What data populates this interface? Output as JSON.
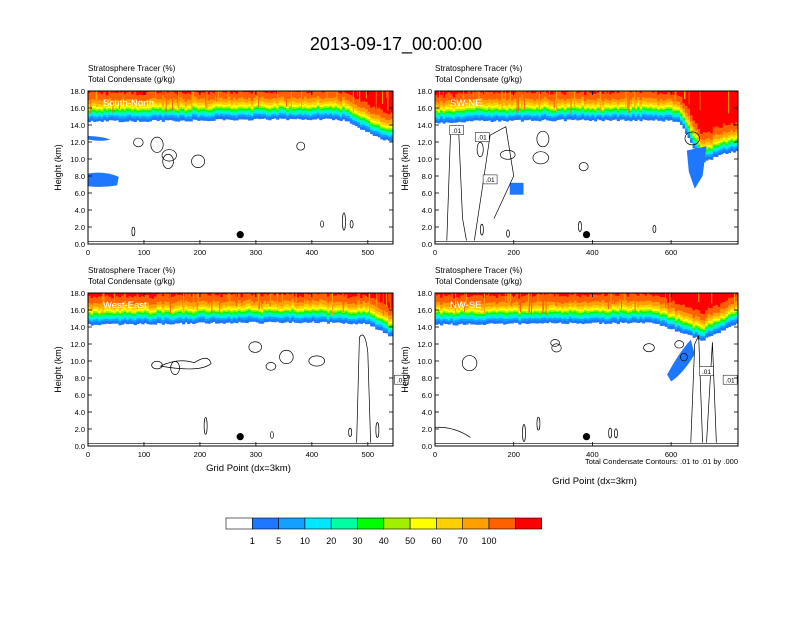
{
  "figure": {
    "title": "2013-09-17_00:00:00",
    "footnote": "Total Condensate Contours: .01 to .01 by .000"
  },
  "chart_data": [
    {
      "type": "heatmap",
      "panel_label": "South-North",
      "title_lines": [
        "Stratosphere Tracer   (%)",
        "Total Condensate   (g/kg)"
      ],
      "ylabel": "Height (km)",
      "xlabel": "",
      "xlim": [
        0,
        545
      ],
      "ylim": [
        0,
        18
      ],
      "xticks": [
        0,
        100,
        200,
        300,
        400,
        500
      ],
      "yticks": [
        "0.0",
        "2.0",
        "4.0",
        "6.0",
        "8.0",
        "10.0",
        "12.0",
        "14.0",
        "16.0",
        "18.0"
      ],
      "tropopause_km": [
        [
          0,
          14.5
        ],
        [
          100,
          14.5
        ],
        [
          200,
          14.6
        ],
        [
          300,
          14.7
        ],
        [
          420,
          14.7
        ],
        [
          460,
          14.6
        ],
        [
          490,
          13.5
        ],
        [
          520,
          12.5
        ],
        [
          545,
          12.0
        ]
      ],
      "contour_labels": [],
      "marker": {
        "x": 272,
        "y": 1.1
      }
    },
    {
      "type": "heatmap",
      "panel_label": "SW-NE",
      "title_lines": [
        "Stratosphere Tracer   (%)",
        "Total Condensate   (g/kg)"
      ],
      "ylabel": "Height (km)",
      "xlabel": "",
      "xlim": [
        0,
        770
      ],
      "ylim": [
        0,
        18
      ],
      "xticks": [
        0,
        200,
        400,
        600
      ],
      "yticks": [
        "0.0",
        "2.0",
        "4.0",
        "6.0",
        "8.0",
        "10.0",
        "12.0",
        "14.0",
        "16.0",
        "18.0"
      ],
      "tropopause_km": [
        [
          0,
          14.2
        ],
        [
          100,
          14.5
        ],
        [
          300,
          14.6
        ],
        [
          560,
          14.6
        ],
        [
          620,
          14.5
        ],
        [
          650,
          12.0
        ],
        [
          680,
          9.5
        ],
        [
          720,
          10.5
        ],
        [
          770,
          11.0
        ]
      ],
      "contour_labels": [
        ".01",
        ".01",
        ".01"
      ],
      "marker": {
        "x": 385,
        "y": 1.1
      }
    },
    {
      "type": "heatmap",
      "panel_label": "West-East",
      "title_lines": [
        "Stratosphere Tracer   (%)",
        "Total Condensate   (g/kg)"
      ],
      "ylabel": "Height (km)",
      "xlabel": "Grid Point (dx=3km)",
      "xlim": [
        0,
        545
      ],
      "ylim": [
        0,
        18
      ],
      "xticks": [
        0,
        100,
        200,
        300,
        400,
        500
      ],
      "yticks": [
        "0.0",
        "2.0",
        "4.0",
        "6.0",
        "8.0",
        "10.0",
        "12.0",
        "14.0",
        "16.0",
        "18.0"
      ],
      "tropopause_km": [
        [
          0,
          14.3
        ],
        [
          200,
          14.5
        ],
        [
          400,
          14.6
        ],
        [
          500,
          14.4
        ],
        [
          545,
          12.8
        ]
      ],
      "contour_labels": [
        ".01"
      ],
      "marker": {
        "x": 272,
        "y": 1.1
      }
    },
    {
      "type": "heatmap",
      "panel_label": "NW-SE",
      "title_lines": [
        "Stratosphere Tracer   (%)",
        "Total Condensate   (g/kg)"
      ],
      "ylabel": "Height (km)",
      "xlabel": "Grid Point (dx=3km)",
      "xlim": [
        0,
        770
      ],
      "ylim": [
        0,
        18
      ],
      "xticks": [
        0,
        200,
        400,
        600
      ],
      "yticks": [
        "0.0",
        "2.0",
        "4.0",
        "6.0",
        "8.0",
        "10.0",
        "12.0",
        "14.0",
        "16.0",
        "18.0"
      ],
      "tropopause_km": [
        [
          0,
          14.3
        ],
        [
          300,
          14.5
        ],
        [
          560,
          14.5
        ],
        [
          620,
          13.5
        ],
        [
          680,
          12.5
        ],
        [
          770,
          14.5
        ]
      ],
      "contour_labels": [
        ".01",
        ".01"
      ],
      "marker": {
        "x": 385,
        "y": 1.1
      }
    }
  ],
  "colorbar": {
    "colors": [
      "#ffffff",
      "#1e78ff",
      "#14a0ff",
      "#00e8ff",
      "#00ffa0",
      "#00ff00",
      "#a0f000",
      "#ffff00",
      "#ffd000",
      "#ffa000",
      "#ff6000",
      "#ff0000"
    ],
    "labels": [
      "1",
      "5",
      "10",
      "20",
      "30",
      "40",
      "50",
      "60",
      "70",
      "100"
    ]
  }
}
